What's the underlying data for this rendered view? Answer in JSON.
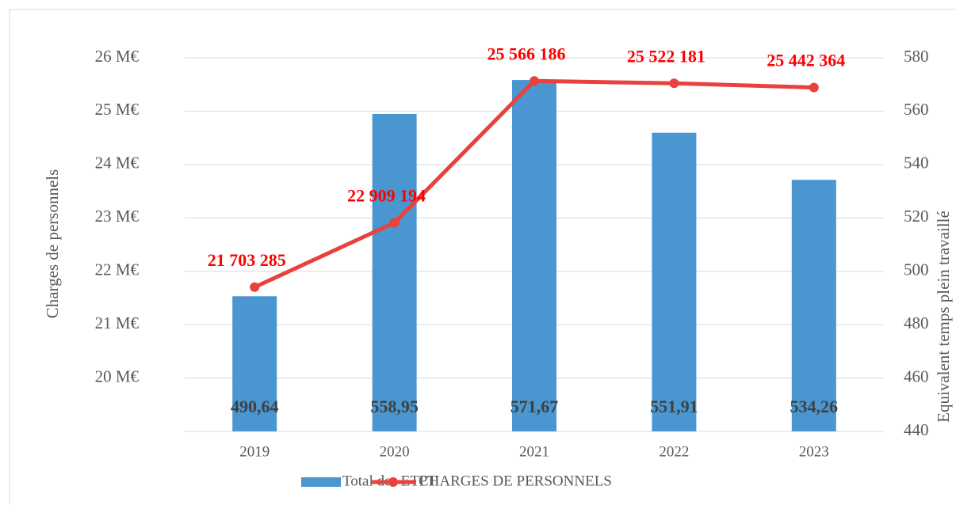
{
  "chart_data": {
    "type": "bar-line",
    "categories": [
      "2019",
      "2020",
      "2021",
      "2022",
      "2023"
    ],
    "series": [
      {
        "name": "Total des ETPT",
        "type": "bar",
        "axis": "y2",
        "color": "#4a96d0",
        "values": [
          490.64,
          558.95,
          571.67,
          551.91,
          534.26
        ],
        "value_labels": [
          "490,64",
          "558,95",
          "571,67",
          "551,91",
          "534,26"
        ]
      },
      {
        "name": "CHARGES DE PERSONNELS",
        "type": "line",
        "color": "#e8413e",
        "values": [
          21703285,
          22909194,
          25566186,
          25522181,
          25442364
        ],
        "value_labels": [
          "21 703 285",
          "22 909 194",
          "25 566 186",
          "25 522 181",
          "25 442 364"
        ]
      }
    ],
    "ylabel": "Charges de personnels",
    "y2label": "Equivalent temps plein travaillé",
    "ylim": [
      19000000,
      26000000
    ],
    "yticks": [
      {
        "value": 20000000,
        "label": "20 M€"
      },
      {
        "value": 21000000,
        "label": "21 M€"
      },
      {
        "value": 22000000,
        "label": "22 M€"
      },
      {
        "value": 23000000,
        "label": "23 M€"
      },
      {
        "value": 24000000,
        "label": "24 M€"
      },
      {
        "value": 25000000,
        "label": "25 M€"
      },
      {
        "value": 26000000,
        "label": "26 M€"
      }
    ],
    "y2lim": [
      440,
      580
    ],
    "y2ticks": [
      440,
      460,
      480,
      500,
      520,
      540,
      560,
      580
    ],
    "grid": true,
    "legend": "bottom"
  }
}
